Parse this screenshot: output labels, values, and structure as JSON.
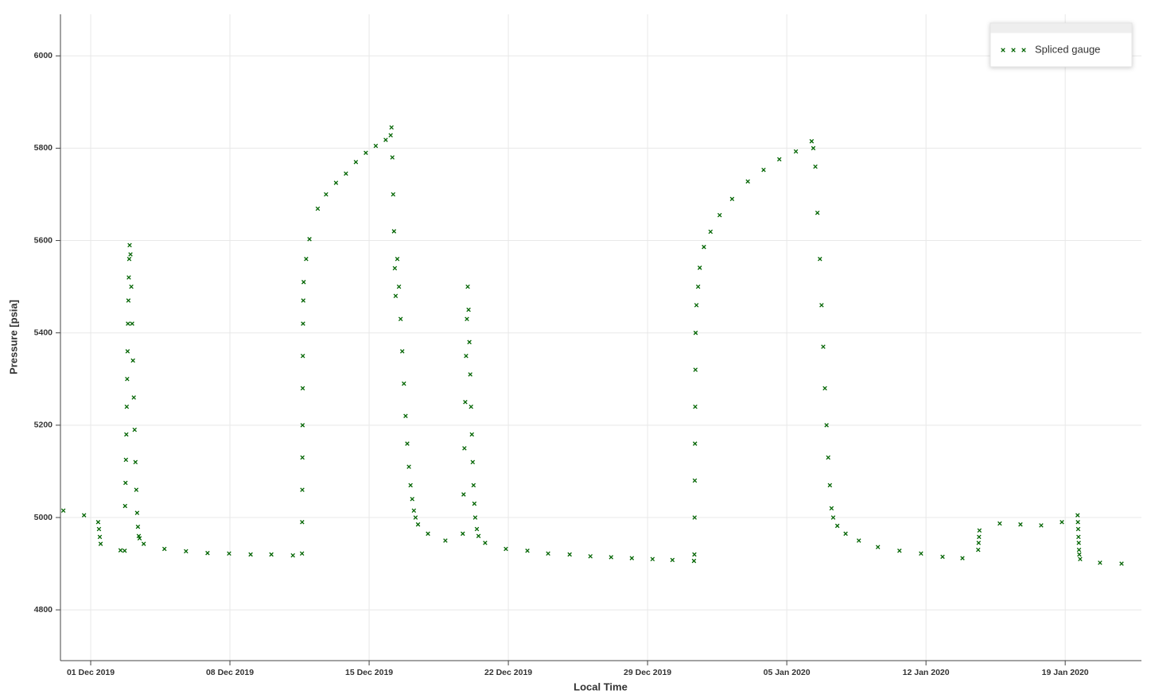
{
  "chart_data": {
    "type": "scatter",
    "x_label": "Local Time",
    "y_label": "Pressure [psia]",
    "x": [
      "2019-11-29T15:00",
      "2019-11-30T16:00",
      "2019-12-01T09:00",
      "2019-12-01T10:00",
      "2019-12-01T11:00",
      "2019-12-01T12:00",
      "2019-12-02T12:00",
      "2019-12-02T17:00",
      "2019-12-02T17:30",
      "2019-12-02T18:00",
      "2019-12-02T18:30",
      "2019-12-02T19:00",
      "2019-12-02T19:30",
      "2019-12-02T20:00",
      "2019-12-02T20:30",
      "2019-12-02T21:00",
      "2019-12-02T21:30",
      "2019-12-02T22:00",
      "2019-12-02T22:30",
      "2019-12-02T23:00",
      "2019-12-03T00:00",
      "2019-12-03T01:00",
      "2019-12-03T02:00",
      "2019-12-03T03:00",
      "2019-12-03T04:00",
      "2019-12-03T05:00",
      "2019-12-03T06:00",
      "2019-12-03T07:00",
      "2019-12-03T08:00",
      "2019-12-03T09:00",
      "2019-12-03T10:00",
      "2019-12-03T11:00",
      "2019-12-03T16:00",
      "2019-12-04T17:00",
      "2019-12-05T19:00",
      "2019-12-06T21:00",
      "2019-12-07T23:00",
      "2019-12-09T01:00",
      "2019-12-10T02:00",
      "2019-12-11T04:00",
      "2019-12-11T15:00",
      "2019-12-11T15:10",
      "2019-12-11T15:20",
      "2019-12-11T15:30",
      "2019-12-11T15:40",
      "2019-12-11T15:50",
      "2019-12-11T16:00",
      "2019-12-11T16:15",
      "2019-12-11T16:30",
      "2019-12-11T17:00",
      "2019-12-11T20:00",
      "2019-12-12T00:00",
      "2019-12-12T10:00",
      "2019-12-12T20:00",
      "2019-12-13T08:00",
      "2019-12-13T20:00",
      "2019-12-14T08:00",
      "2019-12-14T20:00",
      "2019-12-15T08:00",
      "2019-12-15T20:00",
      "2019-12-16T02:00",
      "2019-12-16T03:00",
      "2019-12-16T04:00",
      "2019-12-16T05:00",
      "2019-12-16T06:00",
      "2019-12-16T07:00",
      "2019-12-16T08:00",
      "2019-12-16T10:00",
      "2019-12-16T12:00",
      "2019-12-16T14:00",
      "2019-12-16T16:00",
      "2019-12-16T18:00",
      "2019-12-16T20:00",
      "2019-12-16T22:00",
      "2019-12-17T00:00",
      "2019-12-17T02:00",
      "2019-12-17T04:00",
      "2019-12-17T06:00",
      "2019-12-17T08:00",
      "2019-12-17T11:00",
      "2019-12-17T23:00",
      "2019-12-18T20:00",
      "2019-12-19T17:00",
      "2019-12-19T18:00",
      "2019-12-19T19:00",
      "2019-12-19T20:00",
      "2019-12-19T21:00",
      "2019-12-19T22:00",
      "2019-12-19T23:00",
      "2019-12-20T00:00",
      "2019-12-20T01:00",
      "2019-12-20T02:00",
      "2019-12-20T03:00",
      "2019-12-20T04:00",
      "2019-12-20T05:00",
      "2019-12-20T06:00",
      "2019-12-20T07:00",
      "2019-12-20T08:00",
      "2019-12-20T10:00",
      "2019-12-20T12:00",
      "2019-12-20T20:00",
      "2019-12-21T21:00",
      "2019-12-22T23:00",
      "2019-12-24T00:00",
      "2019-12-25T02:00",
      "2019-12-26T03:00",
      "2019-12-27T04:00",
      "2019-12-28T05:00",
      "2019-12-29T06:00",
      "2019-12-30T06:00",
      "2019-12-31T08:00",
      "2019-12-31T08:30",
      "2019-12-31T08:45",
      "2019-12-31T09:00",
      "2019-12-31T09:15",
      "2019-12-31T09:30",
      "2019-12-31T09:45",
      "2019-12-31T10:00",
      "2019-12-31T11:00",
      "2019-12-31T13:00",
      "2019-12-31T15:00",
      "2019-12-31T20:00",
      "2020-01-01T04:00",
      "2020-01-01T15:00",
      "2020-01-02T06:00",
      "2020-01-03T01:00",
      "2020-01-03T20:00",
      "2020-01-04T15:00",
      "2020-01-05T11:00",
      "2020-01-06T06:00",
      "2020-01-06T08:00",
      "2020-01-06T10:30",
      "2020-01-06T13:00",
      "2020-01-06T16:00",
      "2020-01-06T18:00",
      "2020-01-06T20:00",
      "2020-01-06T22:00",
      "2020-01-07T00:00",
      "2020-01-07T02:00",
      "2020-01-07T04:00",
      "2020-01-07T06:00",
      "2020-01-07T08:00",
      "2020-01-07T13:00",
      "2020-01-07T23:00",
      "2020-01-08T15:00",
      "2020-01-09T14:00",
      "2020-01-10T16:00",
      "2020-01-11T18:00",
      "2020-01-12T20:00",
      "2020-01-13T20:00",
      "2020-01-14T15:00",
      "2020-01-14T15:30",
      "2020-01-14T16:00",
      "2020-01-14T16:30",
      "2020-01-15T17:00",
      "2020-01-16T18:00",
      "2020-01-17T19:00",
      "2020-01-18T20:00",
      "2020-01-19T15:00",
      "2020-01-19T15:20",
      "2020-01-19T15:40",
      "2020-01-19T16:00",
      "2020-01-19T16:20",
      "2020-01-19T16:40",
      "2020-01-19T17:00",
      "2020-01-19T18:00",
      "2020-01-20T18:00",
      "2020-01-21T20:00"
    ],
    "series": [
      {
        "name": "Spliced gauge",
        "color": "#006400",
        "marker": "x",
        "values": [
          5015,
          5005,
          4990,
          4975,
          4958,
          4943,
          4929,
          4928,
          5025,
          5075,
          5125,
          5180,
          5240,
          5300,
          5360,
          5420,
          5470,
          5520,
          5560,
          5590,
          5570,
          5500,
          5420,
          5340,
          5260,
          5190,
          5120,
          5060,
          5010,
          4980,
          4960,
          4955,
          4943,
          4932,
          4927,
          4923,
          4922,
          4920,
          4920,
          4918,
          4922,
          4990,
          5060,
          5130,
          5200,
          5280,
          5350,
          5420,
          5470,
          5510,
          5560,
          5603,
          5669,
          5700,
          5725,
          5745,
          5770,
          5790,
          5805,
          5818,
          5828,
          5845,
          5780,
          5700,
          5620,
          5540,
          5480,
          5560,
          5500,
          5430,
          5360,
          5290,
          5220,
          5160,
          5110,
          5070,
          5040,
          5015,
          5000,
          4985,
          4965,
          4950,
          4965,
          5050,
          5150,
          5250,
          5350,
          5430,
          5500,
          5450,
          5380,
          5310,
          5240,
          5180,
          5120,
          5070,
          5030,
          5000,
          4975,
          4960,
          4945,
          4932,
          4928,
          4922,
          4920,
          4916,
          4914,
          4912,
          4910,
          4908,
          4906,
          4920,
          5000,
          5080,
          5160,
          5240,
          5320,
          5400,
          5460,
          5500,
          5541,
          5586,
          5619,
          5655,
          5690,
          5728,
          5753,
          5776,
          5793,
          5815,
          5800,
          5760,
          5660,
          5560,
          5460,
          5370,
          5280,
          5200,
          5130,
          5070,
          5020,
          5000,
          4982,
          4965,
          4950,
          4936,
          4928,
          4922,
          4915,
          4912,
          4930,
          4945,
          4958,
          4972,
          4987,
          4985,
          4983,
          4990,
          5005,
          4990,
          4975,
          4958,
          4945,
          4930,
          4920,
          4910,
          4902,
          4900
        ]
      }
    ],
    "xlim": [
      "2019-11-29T11:30",
      "2020-01-22T20:00"
    ],
    "xticks": [
      {
        "value": "2019-12-01",
        "label": "01 Dec 2019"
      },
      {
        "value": "2019-12-08",
        "label": "08 Dec 2019"
      },
      {
        "value": "2019-12-15",
        "label": "15 Dec 2019"
      },
      {
        "value": "2019-12-22",
        "label": "22 Dec 2019"
      },
      {
        "value": "2019-12-29",
        "label": "29 Dec 2019"
      },
      {
        "value": "2020-01-05",
        "label": "05 Jan 2020"
      },
      {
        "value": "2020-01-12",
        "label": "12 Jan 2020"
      },
      {
        "value": "2020-01-19",
        "label": "19 Jan 2020"
      }
    ],
    "ylim": [
      4690,
      6090
    ],
    "yticks": [
      4800,
      5000,
      5200,
      5400,
      5600,
      5800,
      6000
    ],
    "grid": true,
    "legend": "top-right"
  }
}
